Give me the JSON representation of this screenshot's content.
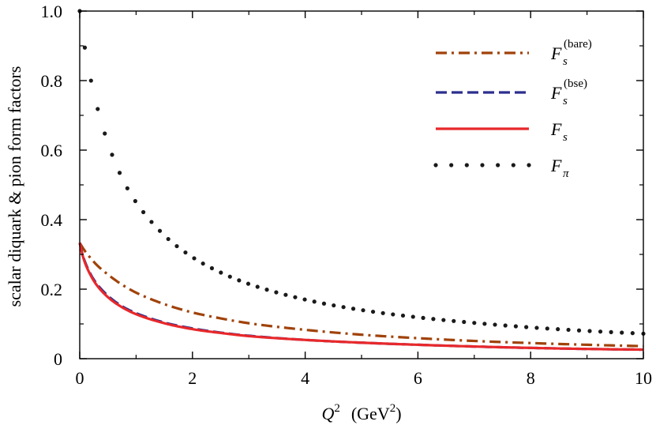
{
  "chart_data": {
    "type": "line",
    "xlabel": "Q",
    "xlabel_sup": "2",
    "xlabel_unit": "(GeV",
    "xlabel_unit_sup": "2",
    "xlabel_unit_end": ")",
    "ylabel": "scalar diquark & pion form factors",
    "xlim": [
      0,
      10
    ],
    "ylim": [
      0,
      1.0
    ],
    "xticks": [
      0,
      2,
      4,
      6,
      8,
      10
    ],
    "xtick_labels": [
      "0",
      "2",
      "4",
      "6",
      "8",
      "10"
    ],
    "yticks": [
      0,
      0.2,
      0.4,
      0.6,
      0.8,
      1.0
    ],
    "ytick_labels": [
      "0",
      "0.2",
      "0.4",
      "0.6",
      "0.8",
      "1.0"
    ],
    "grid": false,
    "legend_position": "top-right",
    "x": [
      0,
      0.05,
      0.1,
      0.2,
      0.3,
      0.5,
      0.75,
      1,
      1.5,
      2,
      2.5,
      3,
      4,
      5,
      6,
      7,
      8,
      9,
      10
    ],
    "series": [
      {
        "name": "F",
        "name_sub": "s",
        "name_sup": "(bare)",
        "color": "#a0420a",
        "dash": "dashdot",
        "values": [
          0.333,
          0.32,
          0.308,
          0.288,
          0.27,
          0.242,
          0.213,
          0.19,
          0.157,
          0.133,
          0.116,
          0.102,
          0.083,
          0.069,
          0.059,
          0.051,
          0.045,
          0.04,
          0.036
        ]
      },
      {
        "name": "F",
        "name_sub": "s",
        "name_sup": "(bse)",
        "color": "#2b2f8e",
        "dash": "dashed",
        "values": [
          0.333,
          0.3,
          0.276,
          0.241,
          0.216,
          0.181,
          0.151,
          0.131,
          0.104,
          0.087,
          0.075,
          0.066,
          0.054,
          0.046,
          0.04,
          0.035,
          0.031,
          0.028,
          0.026
        ]
      },
      {
        "name": "F",
        "name_sub": "s",
        "name_sup": "",
        "color": "#e8282b",
        "dash": "solid",
        "values": [
          0.333,
          0.298,
          0.273,
          0.238,
          0.212,
          0.177,
          0.148,
          0.128,
          0.102,
          0.085,
          0.074,
          0.065,
          0.054,
          0.046,
          0.04,
          0.035,
          0.031,
          0.028,
          0.026
        ]
      },
      {
        "name": "F",
        "name_sub": "π",
        "name_sup": "",
        "color": "#1a1a1a",
        "dash": "dotted",
        "values": [
          1.0,
          0.94,
          0.885,
          0.8,
          0.73,
          0.62,
          0.52,
          0.45,
          0.355,
          0.292,
          0.248,
          0.215,
          0.17,
          0.14,
          0.119,
          0.103,
          0.09,
          0.08,
          0.072
        ]
      }
    ]
  }
}
